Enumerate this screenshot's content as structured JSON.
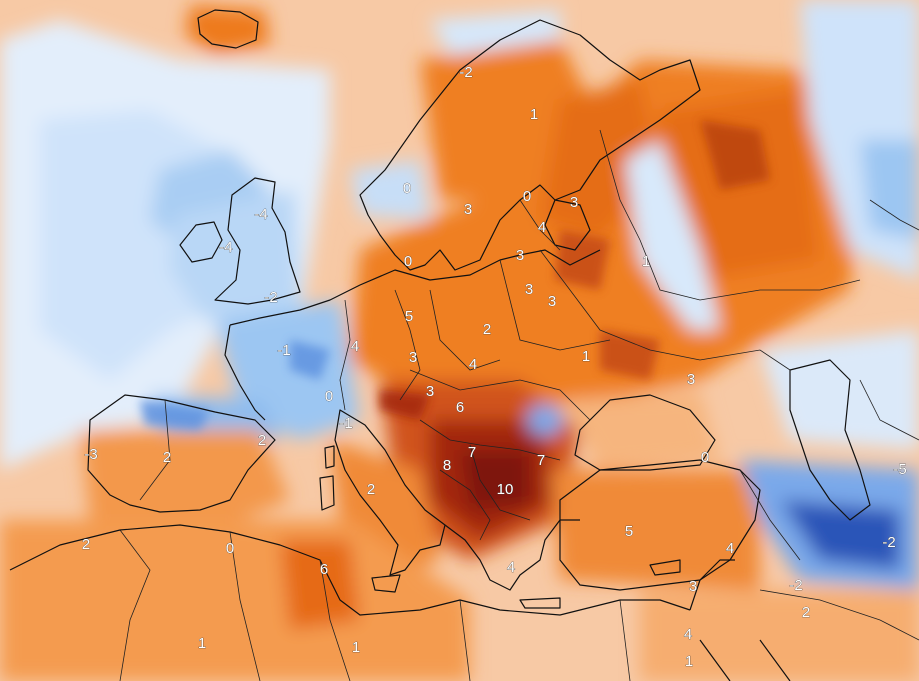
{
  "map": {
    "type": "temperature-anomaly-map",
    "region": "Europe",
    "colors": {
      "dark_red": "#8b1a0a",
      "red": "#c9420f",
      "orange": "#ee7a1c",
      "light_orange": "#f6a867",
      "pale_orange": "#fbd3b1",
      "white": "#f4f6fa",
      "pale_blue": "#cfe3fa",
      "light_blue": "#9cc6f2",
      "blue": "#5f93e0",
      "dark_blue": "#2b55b8",
      "sea": "#dfeefc"
    },
    "labels": [
      {
        "text": "-2",
        "value": -2
      },
      {
        "text": "1",
        "value": 1
      },
      {
        "text": "0",
        "value": 0
      },
      {
        "text": "3",
        "value": 3
      },
      {
        "text": "0",
        "value": 0
      },
      {
        "text": "3",
        "value": 3
      },
      {
        "text": "-4",
        "value": -4
      },
      {
        "text": "-4",
        "value": -4
      },
      {
        "text": "4",
        "value": 4
      },
      {
        "text": "0",
        "value": 0
      },
      {
        "text": "3",
        "value": 3
      },
      {
        "text": "1",
        "value": 1
      },
      {
        "text": "-2",
        "value": -2
      },
      {
        "text": "3",
        "value": 3
      },
      {
        "text": "3",
        "value": 3
      },
      {
        "text": "5",
        "value": 5
      },
      {
        "text": "2",
        "value": 2
      },
      {
        "text": "-1",
        "value": -1
      },
      {
        "text": "4",
        "value": 4
      },
      {
        "text": "3",
        "value": 3
      },
      {
        "text": "4",
        "value": 4
      },
      {
        "text": "1",
        "value": 1
      },
      {
        "text": "3",
        "value": 3
      },
      {
        "text": "0",
        "value": 0
      },
      {
        "text": "3",
        "value": 3
      },
      {
        "text": "6",
        "value": 6
      },
      {
        "text": "-1",
        "value": -1
      },
      {
        "text": "-3",
        "value": -3
      },
      {
        "text": "2",
        "value": 2
      },
      {
        "text": "2",
        "value": 2
      },
      {
        "text": "7",
        "value": 7
      },
      {
        "text": "8",
        "value": 8
      },
      {
        "text": "7",
        "value": 7
      },
      {
        "text": "0",
        "value": 0
      },
      {
        "text": "10",
        "value": 10
      },
      {
        "text": "2",
        "value": 2
      },
      {
        "text": "-5",
        "value": -5
      },
      {
        "text": "-2",
        "value": -2
      },
      {
        "text": "0",
        "value": 0
      },
      {
        "text": "2",
        "value": 2
      },
      {
        "text": "5",
        "value": 5
      },
      {
        "text": "-2",
        "value": -2
      },
      {
        "text": "6",
        "value": 6
      },
      {
        "text": "4",
        "value": 4
      },
      {
        "text": "4",
        "value": 4
      },
      {
        "text": "3",
        "value": 3
      },
      {
        "text": "2",
        "value": 2
      },
      {
        "text": "1",
        "value": 1
      },
      {
        "text": "1",
        "value": 1
      },
      {
        "text": "4",
        "value": 4
      },
      {
        "text": "1",
        "value": 1
      }
    ]
  }
}
